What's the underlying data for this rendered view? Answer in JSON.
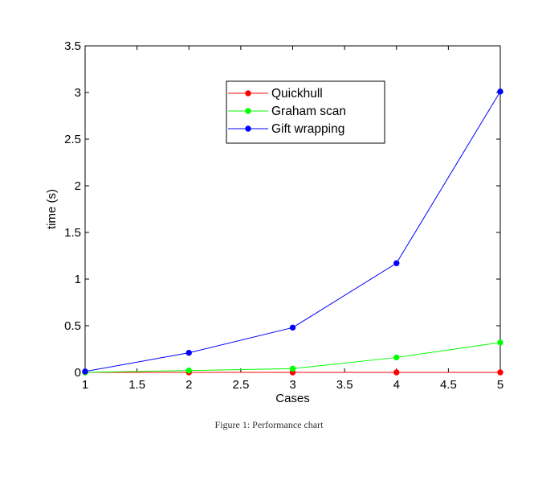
{
  "chart_data": {
    "type": "line",
    "title": "",
    "xlabel": "Cases",
    "ylabel": "time (s)",
    "xlim": [
      1,
      5
    ],
    "ylim": [
      0,
      3.5
    ],
    "x_ticks": [
      "1",
      "1.5",
      "2",
      "2.5",
      "3",
      "3.5",
      "4",
      "4.5",
      "5"
    ],
    "y_ticks": [
      "0",
      "0.5",
      "1",
      "1.5",
      "2",
      "2.5",
      "3",
      "3.5"
    ],
    "grid": false,
    "legend_position": "top-center",
    "x": [
      1,
      2,
      3,
      4,
      5
    ],
    "series": [
      {
        "name": "Quickhull",
        "color": "#ff0000",
        "marker": "circle",
        "values": [
          0.0,
          0.0,
          0.0,
          0.0,
          0.0
        ]
      },
      {
        "name": "Graham scan",
        "color": "#00ff00",
        "marker": "circle",
        "values": [
          0.0,
          0.02,
          0.04,
          0.16,
          0.32
        ]
      },
      {
        "name": "Gift wrapping",
        "color": "#0000ff",
        "marker": "circle",
        "values": [
          0.01,
          0.21,
          0.48,
          1.17,
          3.01
        ]
      }
    ]
  },
  "caption": "Figure 1: Performance chart"
}
